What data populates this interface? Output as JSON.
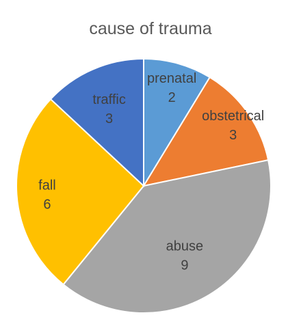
{
  "chart_data": {
    "type": "pie",
    "title": "cause of trauma",
    "slices": [
      {
        "label": "prenatal",
        "value": 2,
        "color": "#5B9BD5"
      },
      {
        "label": "obstetrical",
        "value": 3,
        "color": "#ED7D31"
      },
      {
        "label": "abuse",
        "value": 9,
        "color": "#A5A5A5"
      },
      {
        "label": "fall",
        "value": 6,
        "color": "#FFC000"
      },
      {
        "label": "traffic",
        "value": 3,
        "color": "#4472C4"
      }
    ],
    "start_angle": "12 o'clock",
    "direction": "clockwise",
    "data_labels": "category name and value, inside slices",
    "legend": "none"
  }
}
